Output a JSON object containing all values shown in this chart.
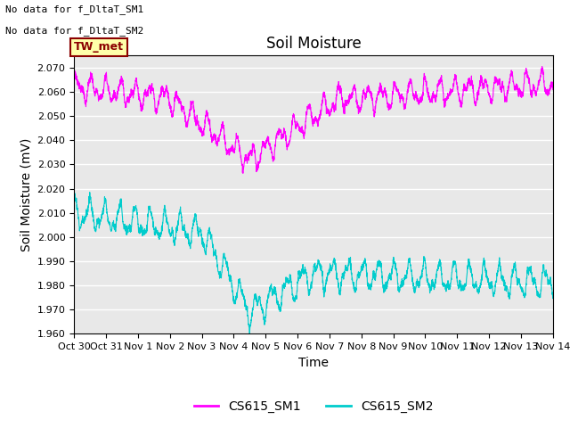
{
  "title": "Soil Moisture",
  "ylabel": "Soil Moisture (mV)",
  "xlabel": "Time",
  "ylim": [
    1.96,
    2.075
  ],
  "xlim": [
    0,
    15
  ],
  "yticks": [
    1.96,
    1.97,
    1.98,
    1.99,
    2.0,
    2.01,
    2.02,
    2.03,
    2.04,
    2.05,
    2.06,
    2.07
  ],
  "xtick_labels": [
    "Oct 30",
    "Oct 31",
    "Nov 1",
    "Nov 2",
    "Nov 3",
    "Nov 4",
    "Nov 5",
    "Nov 6",
    "Nov 7",
    "Nov 8",
    "Nov 9",
    "Nov 10",
    "Nov 11",
    "Nov 12",
    "Nov 13",
    "Nov 14"
  ],
  "no_data_text1": "No data for f_DltaT_SM1",
  "no_data_text2": "No data for f_DltaT_SM2",
  "tw_met_label": "TW_met",
  "legend_label1": "CS615_SM1",
  "legend_label2": "CS615_SM2",
  "color_sm1": "#FF00FF",
  "color_sm2": "#00CCCC",
  "background_color": "#E8E8E8",
  "grid_color": "#FFFFFF",
  "tw_met_bg": "#FFFFAA",
  "tw_met_border": "#8B0000",
  "tw_met_text": "#8B0000",
  "title_fontsize": 12,
  "axis_fontsize": 10,
  "tick_fontsize": 8,
  "legend_fontsize": 10,
  "nodata_fontsize": 8
}
